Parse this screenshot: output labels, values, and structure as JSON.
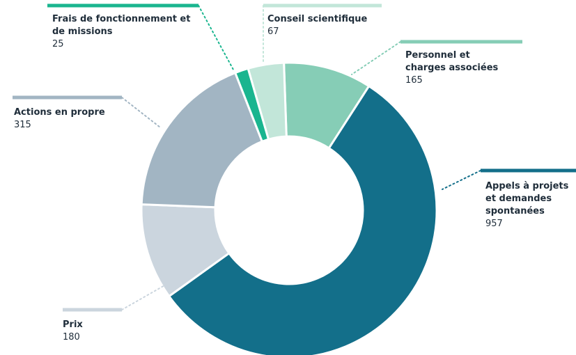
{
  "chart_data": {
    "type": "donut",
    "categories": [
      "Personnel et charges associées",
      "Appels à projets et demandes spontanées",
      "Prix",
      "Actions en propre",
      "Frais de fonctionnement et de missions",
      "Conseil scientifique"
    ],
    "values": [
      165,
      957,
      180,
      315,
      25,
      67
    ],
    "colors": [
      "#86cdb6",
      "#136f8a",
      "#cbd5de",
      "#a2b5c3",
      "#1ab58f",
      "#c2e6d9"
    ]
  }
}
